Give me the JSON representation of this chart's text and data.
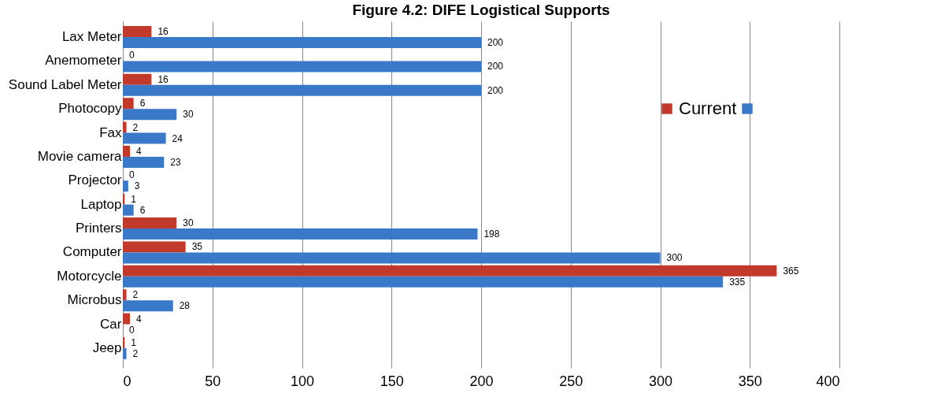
{
  "chart_data": {
    "type": "bar",
    "orientation": "horizontal",
    "title": "Figure 4.2: DIFE Logistical Supports",
    "categories": [
      "Lax Meter",
      "Anemometer",
      "Sound Label Meter",
      "Photocopy",
      "Fax",
      "Movie camera",
      "Projector",
      "Laptop",
      "Printers",
      "Computer",
      "Motorcycle",
      "Microbus",
      "Car",
      "Jeep"
    ],
    "series": [
      {
        "name": "Current",
        "color": "#c0392b",
        "values": [
          16,
          0,
          16,
          6,
          2,
          4,
          0,
          1,
          30,
          35,
          365,
          2,
          4,
          1
        ]
      },
      {
        "color": "#3a78c8",
        "values": [
          200,
          200,
          200,
          30,
          24,
          23,
          3,
          6,
          198,
          300,
          335,
          28,
          0,
          2
        ]
      }
    ],
    "xlim": [
      0,
      400
    ],
    "xticks": [
      0,
      50,
      100,
      150,
      200,
      250,
      300,
      350,
      400
    ],
    "grid": "x",
    "legend": "right",
    "data_labels": true
  }
}
